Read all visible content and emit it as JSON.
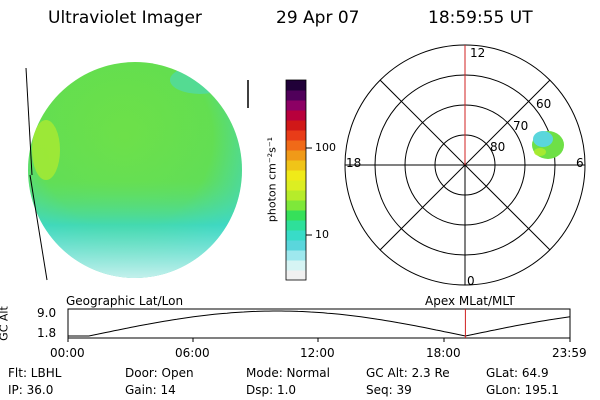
{
  "header": {
    "title": "Ultraviolet Imager",
    "date": "29 Apr 07",
    "time": "18:59:55 UT"
  },
  "colorbar": {
    "unit_label": "photon cm⁻²s⁻¹",
    "ticks": [
      "100",
      "10"
    ],
    "colors": [
      "#f0f0f0",
      "#d6f4f4",
      "#9ee8ee",
      "#5ad6dc",
      "#38dcc8",
      "#2ee09a",
      "#36e05a",
      "#7ee83a",
      "#b6ec2a",
      "#dcee22",
      "#f0ea18",
      "#f0c418",
      "#f09a18",
      "#f06a18",
      "#e83c18",
      "#d01818",
      "#b8003c",
      "#8c0064",
      "#50005a",
      "#200038"
    ]
  },
  "polar_plot": {
    "clock_labels": [
      "12",
      "18",
      "6",
      "0"
    ],
    "lat_labels": [
      "60",
      "70",
      "80"
    ]
  },
  "timeline": {
    "left_label": "Geographic Lat/Lon",
    "right_label": "Apex MLat/MLT",
    "y_axis_label": "GC Alt",
    "y_ticks": [
      "9.0",
      "1.8"
    ],
    "x_ticks": [
      "00:00",
      "06:00",
      "12:00",
      "18:00",
      "23:59"
    ],
    "marker_time": "18:59:55"
  },
  "info": {
    "row1": {
      "flt": "Flt: LBHL",
      "door": "Door: Open",
      "mode": "Mode: Normal",
      "gc_alt": "GC Alt: 2.3 Re",
      "glat": "GLat:  64.9"
    },
    "row2": {
      "ip": "IP: 36.0",
      "gain": "Gain: 14",
      "dsp": "Dsp:    1.0",
      "seq": "Seq: 39",
      "glon": "GLon: 195.1"
    }
  },
  "colors": {
    "marker": "#d02020",
    "disk_main": "#6ee046",
    "disk_lower": "#3cd8c0"
  }
}
